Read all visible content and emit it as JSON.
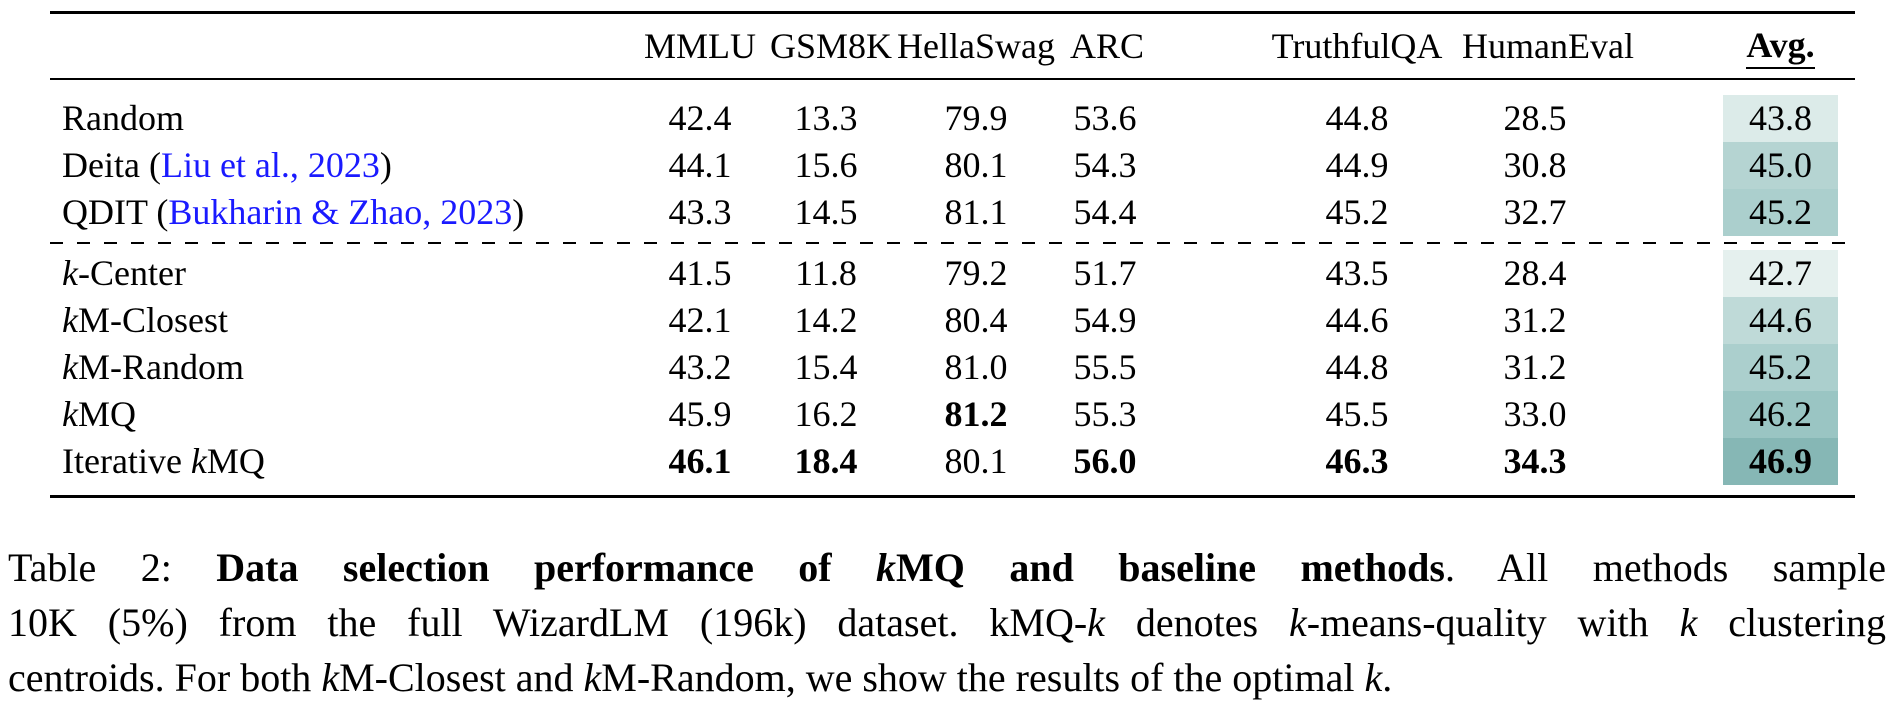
{
  "colors": {
    "link_blue": "#1a1aff",
    "rule_black": "#000000"
  },
  "table": {
    "columns": [
      "MMLU",
      "GSM8K",
      "HellaSwag",
      "ARC",
      "TruthfulQA",
      "HumanEval",
      "Avg."
    ],
    "groups": [
      {
        "name": "baselines",
        "rows": [
          {
            "method": [
              {
                "t": "Random"
              }
            ],
            "values": [
              "42.4",
              "13.3",
              "79.9",
              "53.6",
              "44.8",
              "28.5"
            ],
            "bold": [
              false,
              false,
              false,
              false,
              false,
              false
            ],
            "avg": "43.8",
            "avg_bold": false,
            "avg_bg": "#dcebe9"
          },
          {
            "method": [
              {
                "t": "Deita ("
              },
              {
                "t": "Liu et al., 2023",
                "link": true
              },
              {
                "t": ")"
              }
            ],
            "values": [
              "44.1",
              "15.6",
              "80.1",
              "54.3",
              "44.9",
              "30.8"
            ],
            "bold": [
              false,
              false,
              false,
              false,
              false,
              false
            ],
            "avg": "45.0",
            "avg_bold": false,
            "avg_bg": "#b5d4d2"
          },
          {
            "method": [
              {
                "t": "QDIT ("
              },
              {
                "t": "Bukharin & Zhao, 2023",
                "link": true
              },
              {
                "t": ")"
              }
            ],
            "values": [
              "43.3",
              "14.5",
              "81.1",
              "54.4",
              "45.2",
              "32.7"
            ],
            "bold": [
              false,
              false,
              false,
              false,
              false,
              false
            ],
            "avg": "45.2",
            "avg_bold": false,
            "avg_bg": "#abcfcd"
          }
        ]
      },
      {
        "name": "kmq-methods",
        "rows": [
          {
            "method": [
              {
                "t": "k",
                "i": true
              },
              {
                "t": "-Center"
              }
            ],
            "values": [
              "41.5",
              "11.8",
              "79.2",
              "51.7",
              "43.5",
              "28.4"
            ],
            "bold": [
              false,
              false,
              false,
              false,
              false,
              false
            ],
            "avg": "42.7",
            "avg_bold": false,
            "avg_bg": "#e5f0ee"
          },
          {
            "method": [
              {
                "t": "k",
                "i": true
              },
              {
                "t": "M-Closest"
              }
            ],
            "values": [
              "42.1",
              "14.2",
              "80.4",
              "54.9",
              "44.6",
              "31.2"
            ],
            "bold": [
              false,
              false,
              false,
              false,
              false,
              false
            ],
            "avg": "44.6",
            "avg_bold": false,
            "avg_bg": "#bfdad8"
          },
          {
            "method": [
              {
                "t": "k",
                "i": true
              },
              {
                "t": "M-Random"
              }
            ],
            "values": [
              "43.2",
              "15.4",
              "81.0",
              "55.5",
              "44.8",
              "31.2"
            ],
            "bold": [
              false,
              false,
              false,
              false,
              false,
              false
            ],
            "avg": "45.2",
            "avg_bold": false,
            "avg_bg": "#abcfcd"
          },
          {
            "method": [
              {
                "t": "k",
                "i": true
              },
              {
                "t": "MQ"
              }
            ],
            "values": [
              "45.9",
              "16.2",
              "81.2",
              "55.3",
              "45.5",
              "33.0"
            ],
            "bold": [
              false,
              false,
              true,
              false,
              false,
              false
            ],
            "avg": "46.2",
            "avg_bold": false,
            "avg_bg": "#9ac5c3"
          },
          {
            "method": [
              {
                "t": "Iterative "
              },
              {
                "t": "k",
                "i": true
              },
              {
                "t": "MQ"
              }
            ],
            "values": [
              "46.1",
              "18.4",
              "80.1",
              "56.0",
              "46.3",
              "34.3"
            ],
            "bold": [
              true,
              true,
              false,
              true,
              true,
              true
            ],
            "avg": "46.9",
            "avg_bold": true,
            "avg_bg": "#86b7b5"
          }
        ]
      }
    ]
  },
  "caption": {
    "lines": [
      {
        "justify": true,
        "segments": [
          {
            "t": "Table 2: "
          },
          {
            "t": "Data selection performance of ",
            "b": true
          },
          {
            "t": "k",
            "b": true,
            "i": true
          },
          {
            "t": "MQ and baseline methods",
            "b": true
          },
          {
            "t": ". All methods sample"
          }
        ]
      },
      {
        "justify": true,
        "segments": [
          {
            "t": "10K (5%) from the full WizardLM (196k) dataset. kMQ-"
          },
          {
            "t": "k",
            "i": true
          },
          {
            "t": " denotes "
          },
          {
            "t": "k",
            "i": true
          },
          {
            "t": "-means-quality with "
          },
          {
            "t": "k",
            "i": true
          },
          {
            "t": " clustering"
          }
        ]
      },
      {
        "justify": false,
        "segments": [
          {
            "t": "centroids. For both "
          },
          {
            "t": "k",
            "i": true
          },
          {
            "t": "M-Closest and "
          },
          {
            "t": "k",
            "i": true
          },
          {
            "t": "M-Random, we show the results of the optimal "
          },
          {
            "t": "k",
            "i": true
          },
          {
            "t": "."
          }
        ]
      }
    ]
  }
}
